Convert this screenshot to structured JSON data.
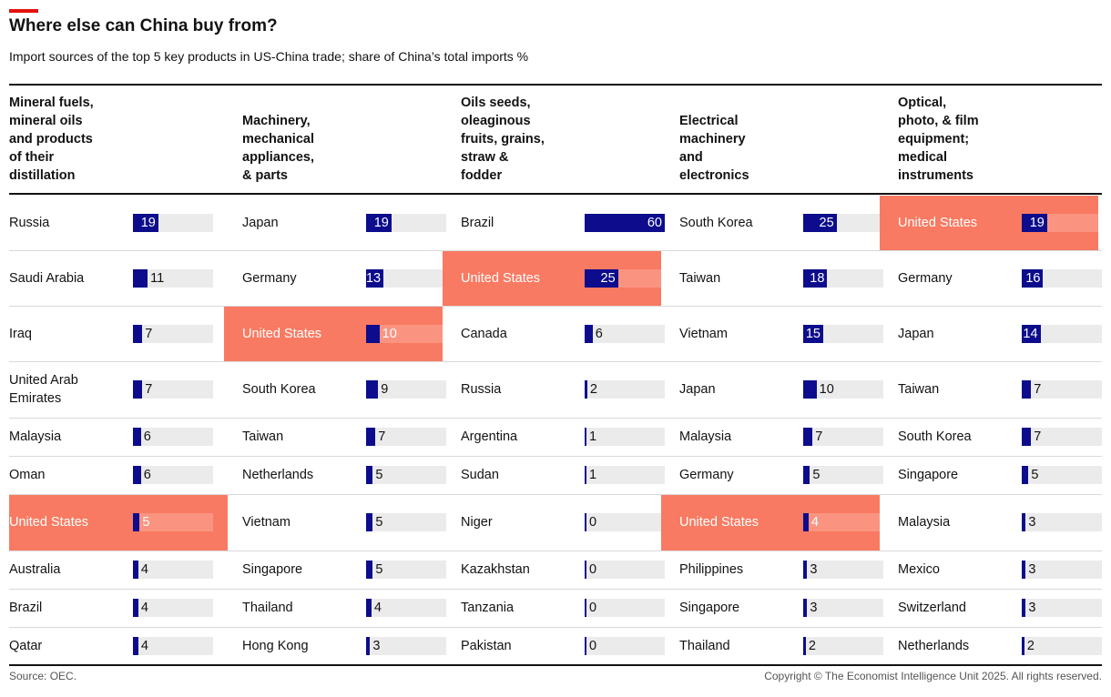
{
  "title": "Where else can China buy from?",
  "subtitle": "Import sources of the top 5 key products in US-China trade; share of China’s total imports %",
  "source": "Source: OEC.",
  "copyright": "Copyright © The Economist Intelligence Unit 2025. All rights reserved.",
  "colors": {
    "bar": "#0c0c8c",
    "highlight": "#f97a62",
    "track": "#ebebeb",
    "accent": "#e3120b"
  },
  "chart_data": {
    "type": "bar",
    "orientation": "horizontal",
    "unit": "%",
    "xlim": [
      0,
      60
    ],
    "highlight": "United States",
    "columns": [
      {
        "header": [
          "Mineral fuels,",
          "mineral oils",
          "and products",
          "of their",
          "distillation"
        ],
        "countries": [
          "Russia",
          "Saudi Arabia",
          "Iraq",
          "United Arab Emirates",
          "Malaysia",
          "Oman",
          "United States",
          "Australia",
          "Brazil",
          "Qatar"
        ],
        "values": [
          19,
          11,
          7,
          7,
          6,
          6,
          5,
          4,
          4,
          4
        ]
      },
      {
        "header": [
          "Machinery,",
          "mechanical",
          "appliances,",
          "& parts"
        ],
        "countries": [
          "Japan",
          "Germany",
          "United States",
          "South Korea",
          "Taiwan",
          "Netherlands",
          "Vietnam",
          "Singapore",
          "Thailand",
          "Hong Kong"
        ],
        "values": [
          19,
          13,
          10,
          9,
          7,
          5,
          5,
          5,
          4,
          3
        ]
      },
      {
        "header": [
          "Oils seeds,",
          "oleaginous",
          "fruits, grains,",
          "straw &",
          "fodder"
        ],
        "countries": [
          "Brazil",
          "United States",
          "Canada",
          "Russia",
          "Argentina",
          "Sudan",
          "Niger",
          "Kazakhstan",
          "Tanzania",
          "Pakistan"
        ],
        "values": [
          60,
          25,
          6,
          2,
          1,
          1,
          0,
          0,
          0,
          0
        ]
      },
      {
        "header": [
          "Electrical",
          "machinery",
          "and",
          "electronics"
        ],
        "countries": [
          "South Korea",
          "Taiwan",
          "Vietnam",
          "Japan",
          "Malaysia",
          "Germany",
          "United States",
          "Philippines",
          "Singapore",
          "Thailand"
        ],
        "values": [
          25,
          18,
          15,
          10,
          7,
          5,
          4,
          3,
          3,
          2
        ]
      },
      {
        "header": [
          "Optical,",
          "photo, & film",
          "equipment;",
          "medical",
          "instruments"
        ],
        "countries": [
          "United States",
          "Germany",
          "Japan",
          "Taiwan",
          "South Korea",
          "Singapore",
          "Malaysia",
          "Mexico",
          "Switzerland",
          "Netherlands"
        ],
        "values": [
          19,
          16,
          14,
          7,
          7,
          5,
          3,
          3,
          3,
          2
        ]
      }
    ]
  }
}
